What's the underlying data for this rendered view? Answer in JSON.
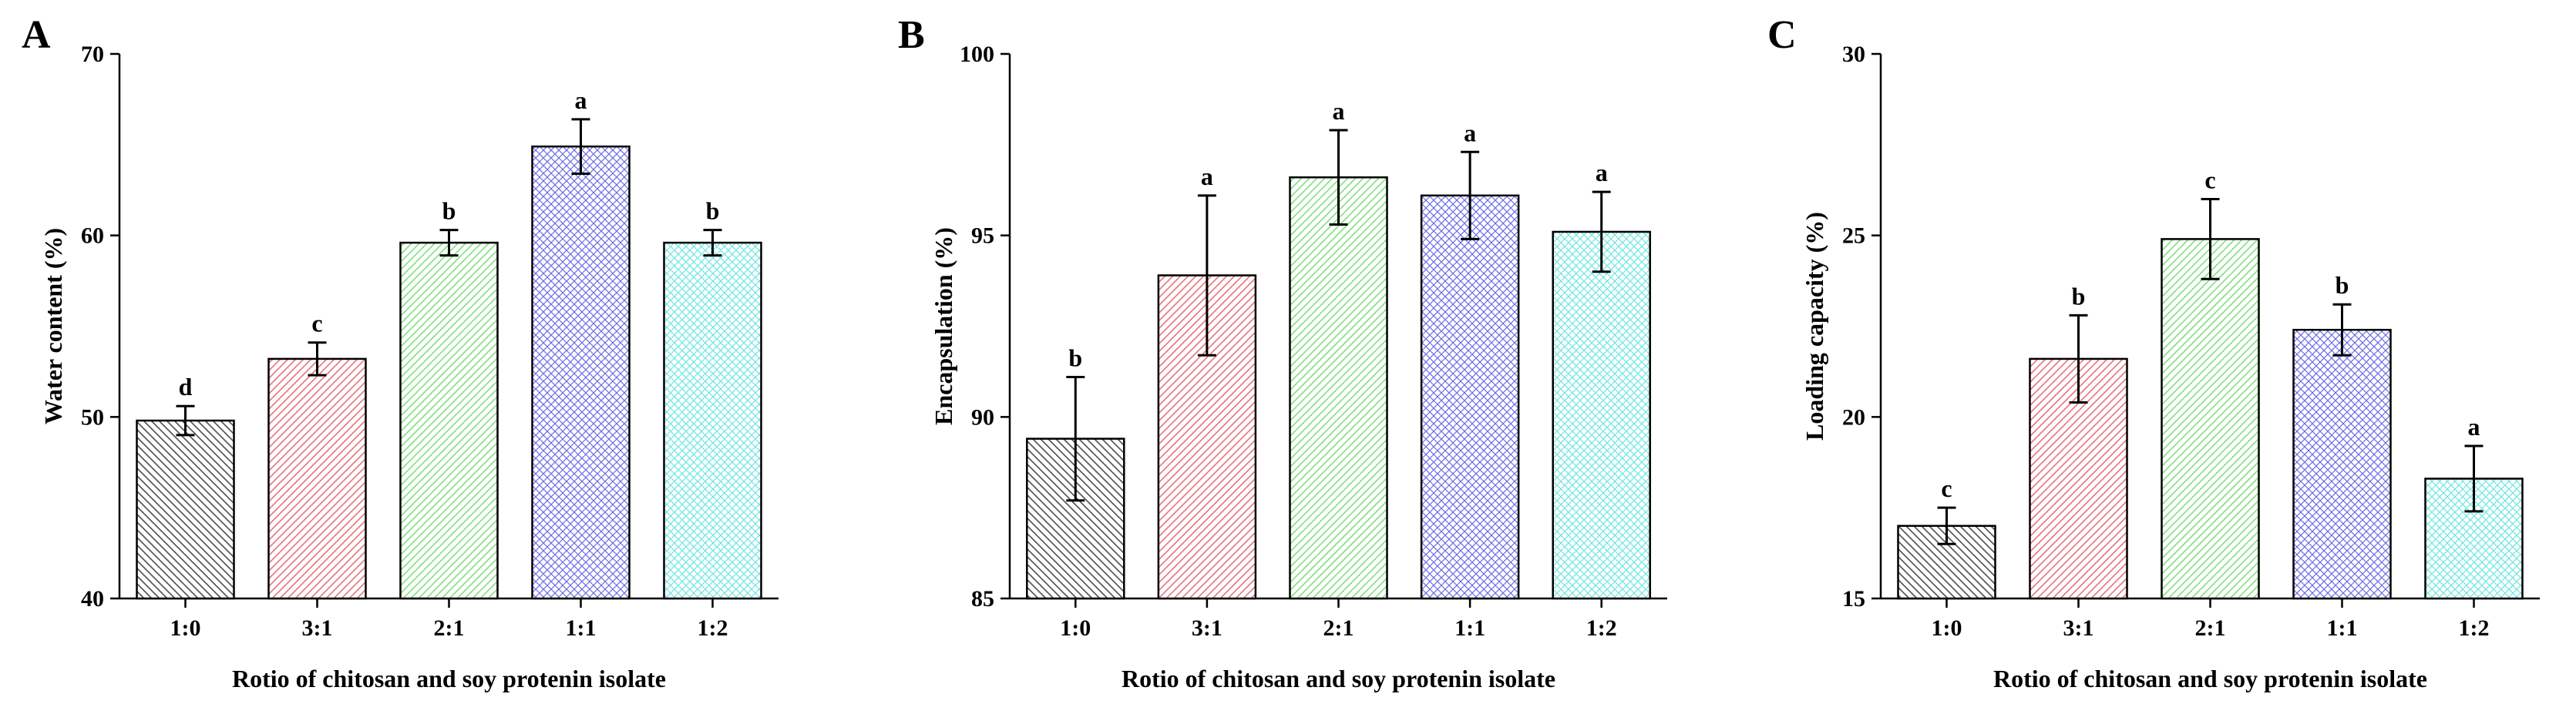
{
  "figure": {
    "x_axis_title": "Rotio of chitosan and soy protenin isolate"
  },
  "panels": [
    {
      "letter": "A",
      "ylabel": "Water content (%)",
      "ylim": [
        40,
        70
      ],
      "yticks": [
        "40",
        "50",
        "60",
        "70"
      ],
      "categories": [
        "1:0",
        "3:1",
        "2:1",
        "1:1",
        "1:2"
      ],
      "values": [
        49.8,
        53.2,
        59.6,
        64.9,
        59.6
      ],
      "errors": [
        0.8,
        0.9,
        0.7,
        1.5,
        0.7
      ],
      "sig_letters": [
        "d",
        "c",
        "b",
        "a",
        "b"
      ]
    },
    {
      "letter": "B",
      "ylabel": "Encapsulation (%)",
      "ylim": [
        85,
        100
      ],
      "yticks": [
        "85",
        "90",
        "95",
        "100"
      ],
      "categories": [
        "1:0",
        "3:1",
        "2:1",
        "1:1",
        "1:2"
      ],
      "values": [
        89.4,
        93.9,
        96.6,
        96.1,
        95.1
      ],
      "errors": [
        1.7,
        2.2,
        1.3,
        1.2,
        1.1
      ],
      "sig_letters": [
        "b",
        "a",
        "a",
        "a",
        "a"
      ]
    },
    {
      "letter": "C",
      "ylabel": "Loading capacity (%)",
      "ylim": [
        15,
        30
      ],
      "yticks": [
        "15",
        "20",
        "25",
        "30"
      ],
      "categories": [
        "1:0",
        "3:1",
        "2:1",
        "1:1",
        "1:2"
      ],
      "values": [
        17.0,
        21.6,
        24.9,
        22.4,
        18.3
      ],
      "errors": [
        0.5,
        1.2,
        1.1,
        0.7,
        0.9
      ],
      "sig_letters": [
        "c",
        "b",
        "c",
        "b",
        "a"
      ]
    }
  ],
  "bar_styles": [
    {
      "color": "#4d4d4d",
      "pattern": "diagonal-left",
      "face": "#ffffff"
    },
    {
      "color": "#e8737b",
      "pattern": "diagonal-right",
      "face": "#ffffff"
    },
    {
      "color": "#7fe07f",
      "pattern": "diagonal-right",
      "face": "#ffffff"
    },
    {
      "color": "#6c6ce6",
      "pattern": "crosshatch",
      "face": "#ffffff"
    },
    {
      "color": "#6fe6e0",
      "pattern": "crosshatch",
      "face": "#ffffff"
    }
  ],
  "chart_data": [
    {
      "type": "bar",
      "title": "A",
      "categories": [
        "1:0",
        "3:1",
        "2:1",
        "1:1",
        "1:2"
      ],
      "values": [
        49.8,
        53.2,
        59.6,
        64.9,
        59.6
      ],
      "errors": [
        0.8,
        0.9,
        0.7,
        1.5,
        0.7
      ],
      "annotations": [
        "d",
        "c",
        "b",
        "a",
        "b"
      ],
      "xlabel": "Rotio of chitosan and soy protenin isolate",
      "ylabel": "Water content (%)",
      "ylim": [
        40,
        70
      ],
      "grid": false
    },
    {
      "type": "bar",
      "title": "B",
      "categories": [
        "1:0",
        "3:1",
        "2:1",
        "1:1",
        "1:2"
      ],
      "values": [
        89.4,
        93.9,
        96.6,
        96.1,
        95.1
      ],
      "errors": [
        1.7,
        2.2,
        1.3,
        1.2,
        1.1
      ],
      "annotations": [
        "b",
        "a",
        "a",
        "a",
        "a"
      ],
      "xlabel": "Rotio of chitosan and soy protenin isolate",
      "ylabel": "Encapsulation (%)",
      "ylim": [
        85,
        100
      ],
      "grid": false
    },
    {
      "type": "bar",
      "title": "C",
      "categories": [
        "1:0",
        "3:1",
        "2:1",
        "1:1",
        "1:2"
      ],
      "values": [
        17.0,
        21.6,
        24.9,
        22.4,
        18.3
      ],
      "errors": [
        0.5,
        1.2,
        1.1,
        0.7,
        0.9
      ],
      "annotations": [
        "c",
        "b",
        "c",
        "b",
        "a"
      ],
      "xlabel": "Rotio of chitosan and soy protenin isolate",
      "ylabel": "Loading capacity (%)",
      "ylim": [
        15,
        30
      ],
      "grid": false
    }
  ]
}
